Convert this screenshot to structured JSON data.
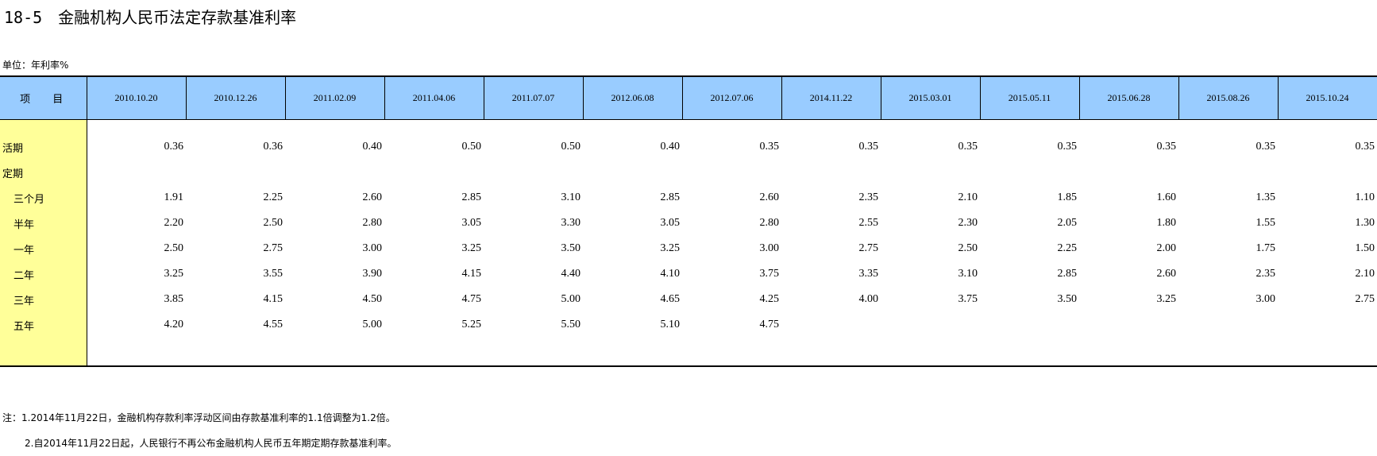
{
  "title": {
    "number": "18-5",
    "text": "金融机构人民币法定存款基准利率"
  },
  "unit": "单位：年利率%",
  "table": {
    "header_item": "项 目",
    "dates": [
      "2010.10.20",
      "2010.12.26",
      "2011.02.09",
      "2011.04.06",
      "2011.07.07",
      "2012.06.08",
      "2012.07.06",
      "2014.11.22",
      "2015.03.01",
      "2015.05.11",
      "2015.06.28",
      "2015.08.26",
      "2015.10.24"
    ],
    "rows": [
      {
        "label": "活期",
        "values": [
          "0.36",
          "0.36",
          "0.40",
          "0.50",
          "0.50",
          "0.40",
          "0.35",
          "0.35",
          "0.35",
          "0.35",
          "0.35",
          "0.35",
          "0.35"
        ]
      },
      {
        "label": "定期",
        "values": [
          "",
          "",
          "",
          "",
          "",
          "",
          "",
          "",
          "",
          "",
          "",
          "",
          ""
        ]
      },
      {
        "label": "三个月",
        "values": [
          "1.91",
          "2.25",
          "2.60",
          "2.85",
          "3.10",
          "2.85",
          "2.60",
          "2.35",
          "2.10",
          "1.85",
          "1.60",
          "1.35",
          "1.10"
        ]
      },
      {
        "label": "半年",
        "values": [
          "2.20",
          "2.50",
          "2.80",
          "3.05",
          "3.30",
          "3.05",
          "2.80",
          "2.55",
          "2.30",
          "2.05",
          "1.80",
          "1.55",
          "1.30"
        ]
      },
      {
        "label": "一年",
        "values": [
          "2.50",
          "2.75",
          "3.00",
          "3.25",
          "3.50",
          "3.25",
          "3.00",
          "2.75",
          "2.50",
          "2.25",
          "2.00",
          "1.75",
          "1.50"
        ]
      },
      {
        "label": "二年",
        "values": [
          "3.25",
          "3.55",
          "3.90",
          "4.15",
          "4.40",
          "4.10",
          "3.75",
          "3.35",
          "3.10",
          "2.85",
          "2.60",
          "2.35",
          "2.10"
        ]
      },
      {
        "label": "三年",
        "values": [
          "3.85",
          "4.15",
          "4.50",
          "4.75",
          "5.00",
          "4.65",
          "4.25",
          "4.00",
          "3.75",
          "3.50",
          "3.25",
          "3.00",
          "2.75"
        ]
      },
      {
        "label": "五年",
        "values": [
          "4.20",
          "4.55",
          "5.00",
          "5.25",
          "5.50",
          "5.10",
          "4.75",
          "",
          "",
          "",
          "",
          "",
          ""
        ]
      }
    ]
  },
  "notes": [
    "注：1.2014年11月22日，金融机构存款利率浮动区间由存款基准利率的1.1倍调整为1.2倍。",
    "2.自2014年11月22日起，人民银行不再公布金融机构人民币五年期定期存款基准利率。"
  ],
  "colors": {
    "header_bg": "#99ccff",
    "label_bg": "#ffff99"
  }
}
